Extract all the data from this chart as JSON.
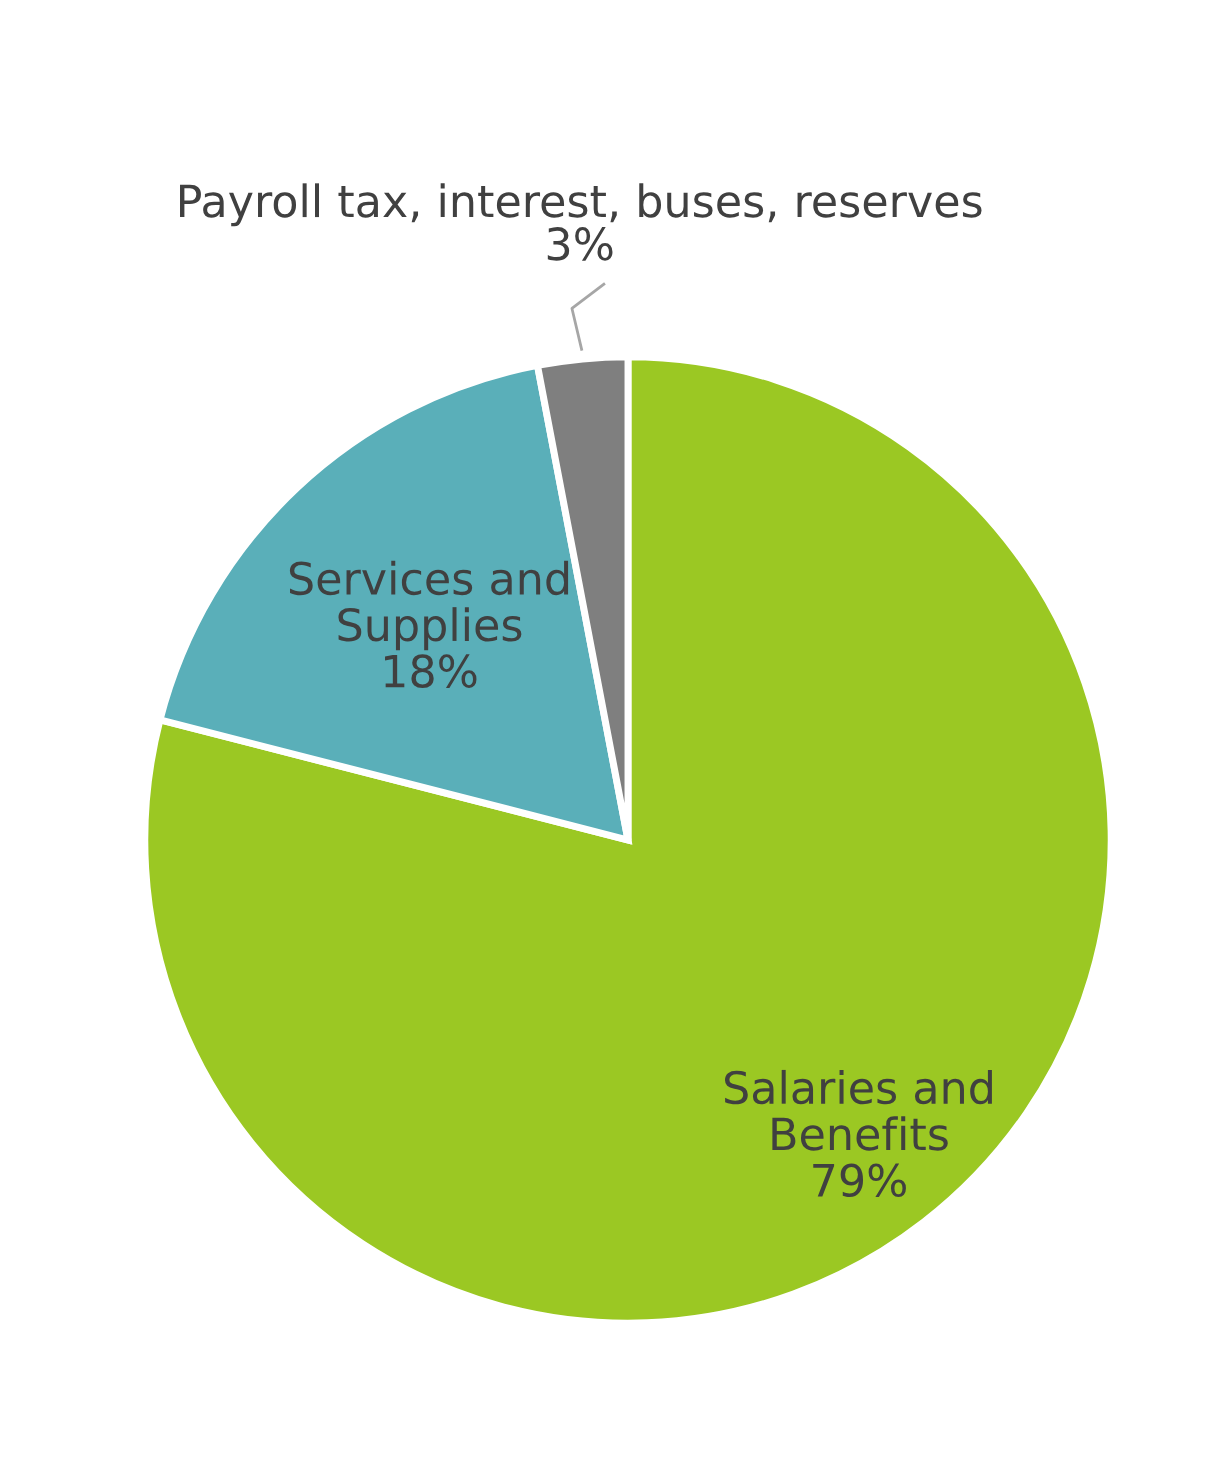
{
  "chart_data": {
    "type": "pie",
    "categories": [
      "Salaries and\nBenefits",
      "Services and\nSupplies",
      "Payroll tax, interest, buses, reserves"
    ],
    "values": [
      79,
      18,
      3
    ],
    "colors": [
      "#9bc823",
      "#5aafb9",
      "#7f7f7f"
    ],
    "value_labels": [
      "79%",
      "18%",
      "3%"
    ]
  }
}
